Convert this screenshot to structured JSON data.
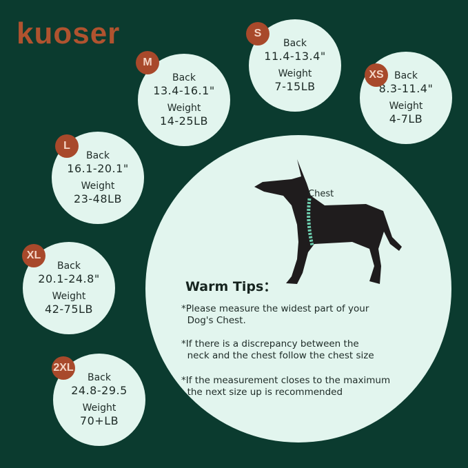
{
  "brand": {
    "logo_text": "kuoser"
  },
  "colors": {
    "background": "#0b3b2f",
    "circle": "#e2f5ee",
    "badge": "#a8492b",
    "chest_band": "#6ecfb0"
  },
  "sizes": [
    {
      "size": "M",
      "back_label": "Back",
      "back": "13.4-16.1\"",
      "weight_label": "Weight",
      "weight": "14-25LB"
    },
    {
      "size": "S",
      "back_label": "Back",
      "back": "11.4-13.4\"",
      "weight_label": "Weight",
      "weight": "7-15LB"
    },
    {
      "size": "XS",
      "back_label": "Back",
      "back": "8.3-11.4\"",
      "weight_label": "Weight",
      "weight": "4-7LB"
    },
    {
      "size": "L",
      "back_label": "Back",
      "back": "16.1-20.1\"",
      "weight_label": "Weight",
      "weight": "23-48LB"
    },
    {
      "size": "XL",
      "back_label": "Back",
      "back": "20.1-24.8\"",
      "weight_label": "Weight",
      "weight": "42-75LB"
    },
    {
      "size": "2XL",
      "back_label": "Back",
      "back": "24.8-29.5",
      "weight_label": "Weight",
      "weight": "70+LB"
    }
  ],
  "tips": {
    "chest_label": "Chest",
    "title": "Warm Tips：",
    "items": [
      "*Please measure the widest part of your\n  Dog's Chest.",
      "*If there is a discrepancy between the\n  neck and the chest follow the chest size",
      "*If the measurement closes to the maximum\n  the next size up is recommended"
    ]
  }
}
